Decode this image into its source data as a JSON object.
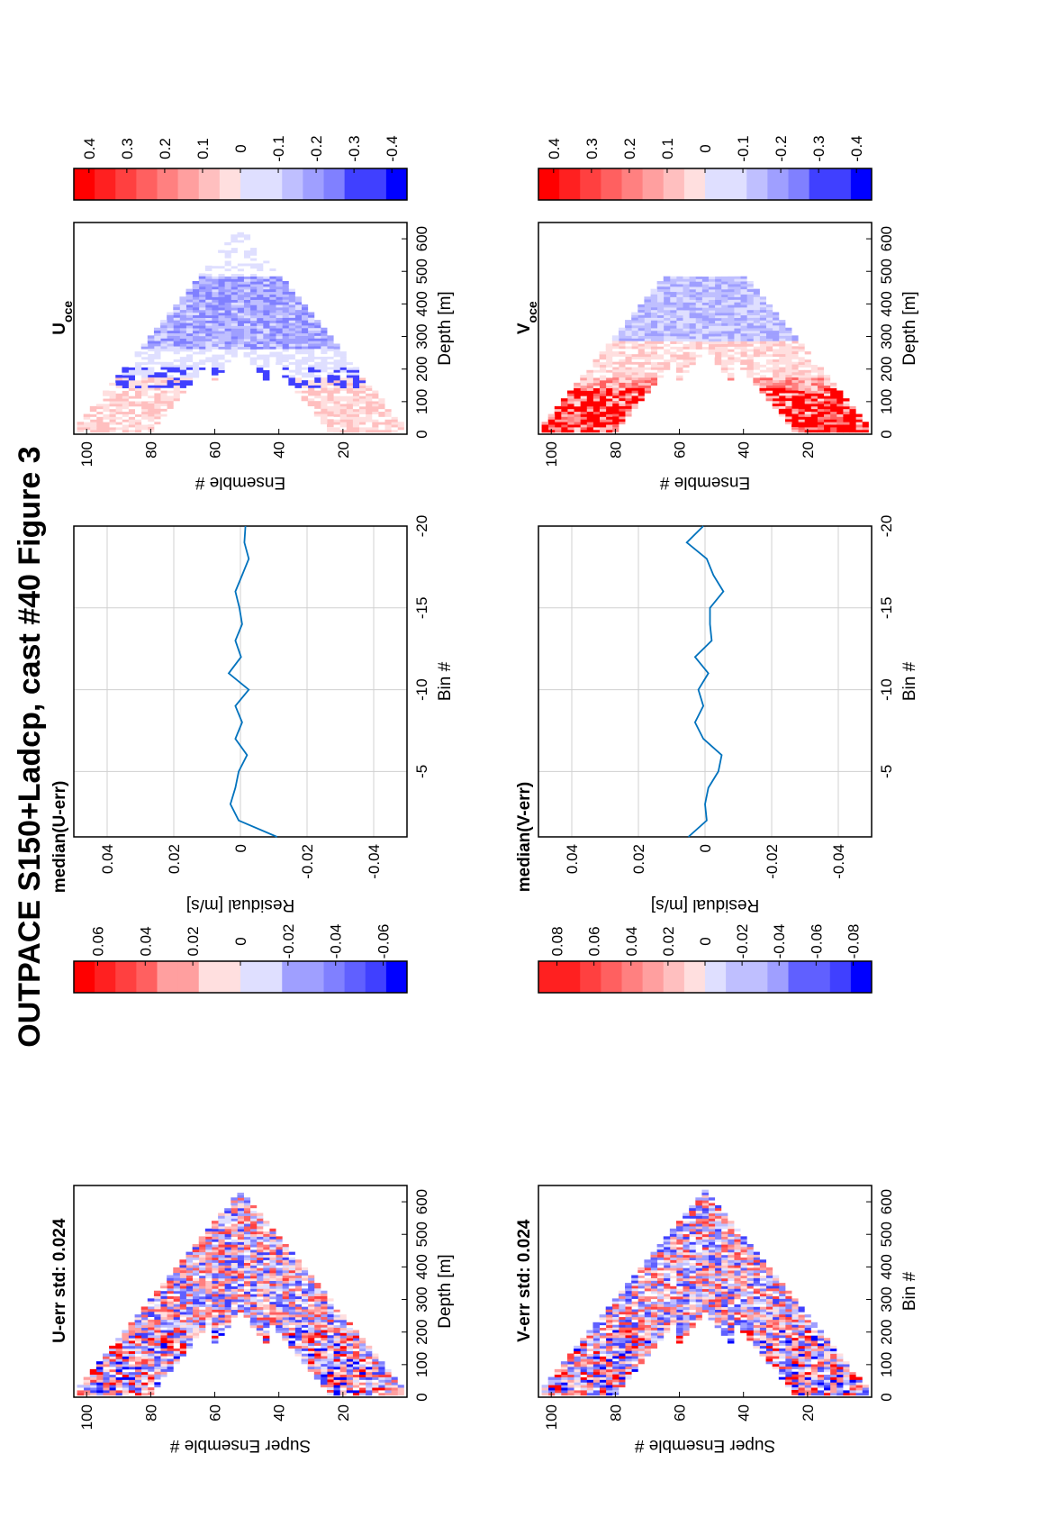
{
  "figure": {
    "title": "OUTPACE S150+Ladcp, cast #40  Figure 3"
  },
  "colors": {
    "red": "#ff0000",
    "blue": "#0000ff",
    "line": "#0072bd",
    "grid": "#d0d0d0"
  },
  "chart_data": [
    {
      "id": "u-err-panel",
      "type": "heatmap",
      "title": "U-err std: 0.024",
      "xlabel": "Super Ensemble #",
      "ylabel": "Depth [m]",
      "xlim": [
        0,
        104
      ],
      "ylim": [
        0,
        650
      ],
      "x_ticks": [
        20,
        40,
        60,
        80,
        100
      ],
      "y_ticks": [
        0,
        100,
        200,
        300,
        400,
        500,
        600
      ],
      "y_reversed": true,
      "pattern": "V-shaped cast profile, max depth about 620 m near ensemble 52",
      "colorbar": {
        "range": [
          -0.07,
          0.07
        ],
        "levels": 16,
        "ticks": [
          0.06,
          0.04,
          0.02,
          0,
          -0.02,
          -0.04,
          -0.06
        ]
      }
    },
    {
      "id": "u-median-panel",
      "type": "line",
      "title": "median(U-err)",
      "xlabel": "Residual [m/s]",
      "ylabel": "Bin #",
      "xlim": [
        -0.05,
        0.05
      ],
      "ylim": [
        -20,
        -1
      ],
      "x_ticks": [
        -0.04,
        -0.02,
        0,
        0.02,
        0.04
      ],
      "y_ticks": [
        -5,
        -10,
        -15,
        -20
      ],
      "grid": true,
      "series": [
        {
          "bins": [
            -1,
            -2,
            -3,
            -4,
            -5,
            -6,
            -7,
            -8,
            -9,
            -10,
            -11,
            -12,
            -13,
            -14,
            -15,
            -16,
            -17,
            -18,
            -19,
            -20
          ],
          "values": [
            -0.011,
            0.0005,
            0.003,
            0.0015,
            0.0005,
            -0.002,
            0.0015,
            -0.0005,
            0.0015,
            -0.0025,
            0.0035,
            -0.0002,
            0.0015,
            -0.0005,
            0.0003,
            0.0015,
            -0.0005,
            -0.0025,
            -0.0012,
            -0.0015
          ]
        }
      ]
    },
    {
      "id": "u-oce-panel",
      "type": "heatmap",
      "title": "U",
      "title_sub": "oce",
      "xlabel": "Ensemble #",
      "ylabel": "Depth [m]",
      "xlim": [
        0,
        104
      ],
      "ylim": [
        0,
        650
      ],
      "x_ticks": [
        20,
        40,
        60,
        80,
        100
      ],
      "y_ticks": [
        0,
        100,
        200,
        300,
        400,
        500,
        600
      ],
      "y_reversed": true,
      "pattern": "V-shaped cast profile, red near surface, blue 300-450 m",
      "colorbar": {
        "range": [
          -0.44,
          0.44
        ],
        "levels": 16,
        "ticks": [
          0.4,
          0.3,
          0.2,
          0.1,
          0,
          -0.1,
          -0.2,
          -0.3,
          -0.4
        ]
      }
    },
    {
      "id": "v-err-panel",
      "type": "heatmap",
      "title": "V-err std: 0.024",
      "xlabel": "Super Ensemble #",
      "ylabel": "Bin #",
      "xlim": [
        0,
        104
      ],
      "ylim": [
        0,
        650
      ],
      "x_ticks": [
        20,
        40,
        60,
        80,
        100
      ],
      "y_ticks": [
        0,
        100,
        200,
        300,
        400,
        500,
        600
      ],
      "y_reversed": true,
      "pattern": "V-shaped cast profile, max depth about 620 m near ensemble 52",
      "colorbar": {
        "range": [
          -0.09,
          0.09
        ],
        "levels": 16,
        "ticks": [
          0.08,
          0.06,
          0.04,
          0.02,
          0,
          -0.02,
          -0.04,
          -0.06,
          -0.08
        ]
      }
    },
    {
      "id": "v-median-panel",
      "type": "line",
      "title": "median(V-err)",
      "xlabel": "Residual [m/s]",
      "ylabel": "Bin #",
      "xlim": [
        -0.05,
        0.05
      ],
      "ylim": [
        -20,
        -1
      ],
      "x_ticks": [
        -0.04,
        -0.02,
        0,
        0.02,
        0.04
      ],
      "y_ticks": [
        -5,
        -10,
        -15,
        -20
      ],
      "grid": true,
      "series": [
        {
          "bins": [
            -1,
            -2,
            -3,
            -4,
            -5,
            -6,
            -7,
            -8,
            -9,
            -10,
            -11,
            -12,
            -13,
            -14,
            -15,
            -16,
            -17,
            -18,
            -19,
            -20
          ],
          "values": [
            0.005,
            -0.0005,
            0.0,
            -0.001,
            -0.004,
            -0.005,
            0.0005,
            0.003,
            0.0005,
            0.002,
            -0.001,
            0.003,
            -0.002,
            -0.0015,
            -0.0015,
            -0.0055,
            -0.0025,
            -0.0005,
            0.0055,
            0.0005
          ]
        }
      ]
    },
    {
      "id": "v-oce-panel",
      "type": "heatmap",
      "title": "V",
      "title_sub": "oce",
      "xlabel": "Ensemble #",
      "ylabel": "Depth [m]",
      "xlim": [
        0,
        104
      ],
      "ylim": [
        0,
        650
      ],
      "x_ticks": [
        20,
        40,
        60,
        80,
        100
      ],
      "y_ticks": [
        0,
        100,
        200,
        300,
        400,
        500,
        600
      ],
      "y_reversed": true,
      "pattern": "V-shaped cast profile, strong red near surface, blue at depth",
      "colorbar": {
        "range": [
          -0.44,
          0.44
        ],
        "levels": 16,
        "ticks": [
          0.4,
          0.3,
          0.2,
          0.1,
          0,
          -0.1,
          -0.2,
          -0.3,
          -0.4
        ]
      }
    }
  ]
}
